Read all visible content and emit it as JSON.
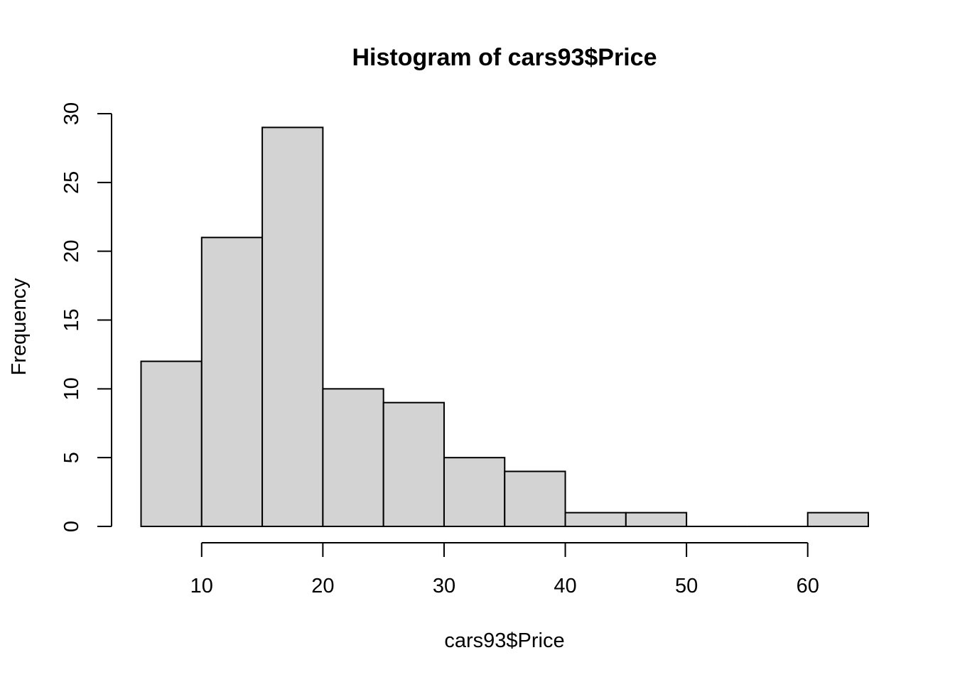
{
  "chart_data": {
    "type": "bar",
    "title": "Histogram of cars93$Price",
    "xlabel": "cars93$Price",
    "ylabel": "Frequency",
    "bins": [
      {
        "x0": 5,
        "x1": 10,
        "count": 12
      },
      {
        "x0": 10,
        "x1": 15,
        "count": 21
      },
      {
        "x0": 15,
        "x1": 20,
        "count": 29
      },
      {
        "x0": 20,
        "x1": 25,
        "count": 10
      },
      {
        "x0": 25,
        "x1": 30,
        "count": 9
      },
      {
        "x0": 30,
        "x1": 35,
        "count": 5
      },
      {
        "x0": 35,
        "x1": 40,
        "count": 4
      },
      {
        "x0": 40,
        "x1": 45,
        "count": 1
      },
      {
        "x0": 45,
        "x1": 50,
        "count": 1
      },
      {
        "x0": 50,
        "x1": 55,
        "count": 0
      },
      {
        "x0": 55,
        "x1": 60,
        "count": 0
      },
      {
        "x0": 60,
        "x1": 65,
        "count": 1
      }
    ],
    "x_ticks": [
      10,
      20,
      30,
      40,
      50,
      60
    ],
    "y_ticks": [
      0,
      5,
      10,
      15,
      20,
      25,
      30
    ],
    "xlim": [
      5,
      65
    ],
    "ylim": [
      0,
      30
    ],
    "grid": false,
    "bar_color": "#d3d3d3"
  }
}
